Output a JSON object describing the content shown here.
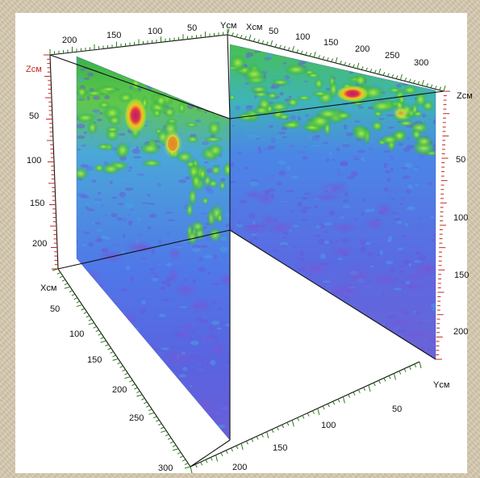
{
  "axes": {
    "top_y_title": "Yсм",
    "top_x_title": "Xсм",
    "top_y_ticks": [
      "200",
      "150",
      "100",
      "50"
    ],
    "top_x_ticks": [
      "50",
      "100",
      "150",
      "200",
      "250",
      "300"
    ],
    "left_z_title": "Zсм",
    "left_z_ticks": [
      "50",
      "100",
      "150",
      "200"
    ],
    "right_z_title": "Zсм",
    "right_z_ticks": [
      "50",
      "100",
      "150",
      "200"
    ],
    "bottom_x_title": "Xсм",
    "bottom_x_ticks": [
      "50",
      "100",
      "150",
      "200",
      "250",
      "300"
    ],
    "bottom_y_title": "Yсм",
    "bottom_y_ticks": [
      "50",
      "100",
      "150",
      "200"
    ]
  },
  "colors": {
    "x_axis": "#2a7a1a",
    "y_axis": "#2a7a1a",
    "z_axis": "#c0281c",
    "frame": "#111111"
  }
}
